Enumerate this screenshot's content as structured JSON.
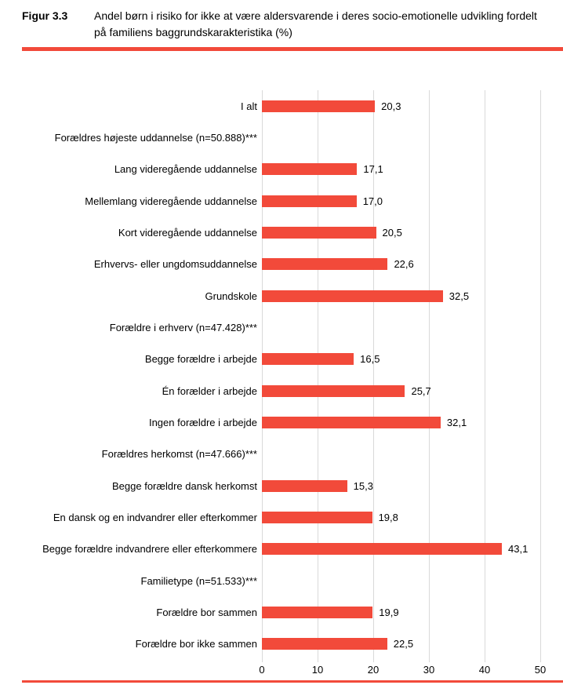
{
  "header": {
    "figure_label": "Figur 3.3",
    "title": "Andel børn i risiko for ikke at være aldersvarende i deres socio-emotionelle udvikling fordelt på familiens baggrundskarakteristika (%)"
  },
  "colors": {
    "accent_red": "#f24a3a",
    "gridline": "#d9d9d9",
    "text": "#000000"
  },
  "chart_data": {
    "type": "bar",
    "orientation": "horizontal",
    "title": "Andel børn i risiko for ikke at være aldersvarende i deres socio-emotionelle udvikling fordelt på familiens baggrundskarakteristika (%)",
    "xlabel": "",
    "ylabel": "",
    "xlim": [
      0,
      50
    ],
    "x_ticks": [
      0,
      10,
      20,
      30,
      40,
      50
    ],
    "grid": "vertical",
    "value_format": "danish-decimal-comma",
    "rows": [
      {
        "label": "I alt",
        "value": 20.3,
        "display": "20,3",
        "is_group_header": false
      },
      {
        "label": "Forældres højeste uddannelse (n=50.888)***",
        "value": null,
        "display": "",
        "is_group_header": true
      },
      {
        "label": "Lang videregående uddannelse",
        "value": 17.1,
        "display": "17,1",
        "is_group_header": false
      },
      {
        "label": "Mellemlang videregående uddannelse",
        "value": 17.0,
        "display": "17,0",
        "is_group_header": false
      },
      {
        "label": "Kort videregående uddannelse",
        "value": 20.5,
        "display": "20,5",
        "is_group_header": false
      },
      {
        "label": "Erhvervs- eller ungdomsuddannelse",
        "value": 22.6,
        "display": "22,6",
        "is_group_header": false
      },
      {
        "label": "Grundskole",
        "value": 32.5,
        "display": "32,5",
        "is_group_header": false
      },
      {
        "label": "Forældre i erhverv (n=47.428)***",
        "value": null,
        "display": "",
        "is_group_header": true
      },
      {
        "label": "Begge forældre i arbejde",
        "value": 16.5,
        "display": "16,5",
        "is_group_header": false
      },
      {
        "label": "Én forælder i arbejde",
        "value": 25.7,
        "display": "25,7",
        "is_group_header": false
      },
      {
        "label": "Ingen forældre i arbejde",
        "value": 32.1,
        "display": "32,1",
        "is_group_header": false
      },
      {
        "label": "Forældres herkomst (n=47.666)***",
        "value": null,
        "display": "",
        "is_group_header": true
      },
      {
        "label": "Begge forældre dansk herkomst",
        "value": 15.3,
        "display": "15,3",
        "is_group_header": false
      },
      {
        "label": "En dansk og en indvandrer eller efterkommer",
        "value": 19.8,
        "display": "19,8",
        "is_group_header": false
      },
      {
        "label": "Begge forældre indvandrere eller efterkommere",
        "value": 43.1,
        "display": "43,1",
        "is_group_header": false
      },
      {
        "label": "Familietype (n=51.533)***",
        "value": null,
        "display": "",
        "is_group_header": true
      },
      {
        "label": "Forældre bor sammen",
        "value": 19.9,
        "display": "19,9",
        "is_group_header": false
      },
      {
        "label": "Forældre bor ikke sammen",
        "value": 22.5,
        "display": "22,5",
        "is_group_header": false
      }
    ]
  }
}
